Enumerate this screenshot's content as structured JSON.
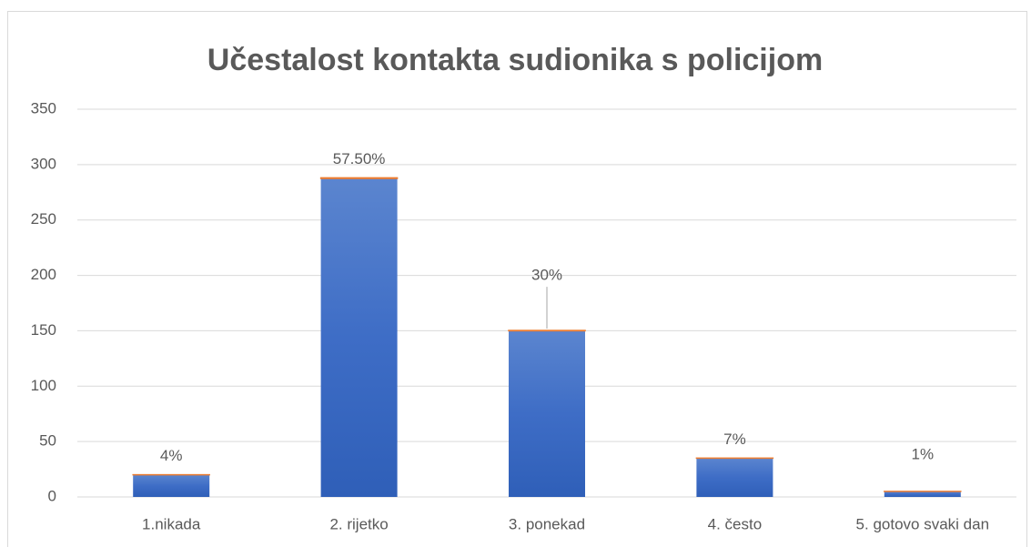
{
  "chart_data": {
    "type": "bar",
    "title": "Učestalost kontakta sudionika s policijom",
    "categories": [
      "1.nikada",
      "2. rijetko",
      "3. ponekad",
      "4. često",
      "5. gotovo svaki dan"
    ],
    "series": [
      {
        "color": "#4472c4",
        "values": [
          20,
          287.5,
          150,
          35,
          5
        ]
      },
      {
        "color": "#ed7d31",
        "values": [
          0.04,
          0.575,
          0.3,
          0.07,
          0.01
        ],
        "value_labels": [
          "4%",
          "57.50%",
          "30%",
          "7%",
          "1%"
        ]
      }
    ],
    "stacked": true,
    "ylim": [
      0,
      350
    ],
    "yticks": [
      0,
      50,
      100,
      150,
      200,
      250,
      300,
      350
    ],
    "grid": true
  }
}
